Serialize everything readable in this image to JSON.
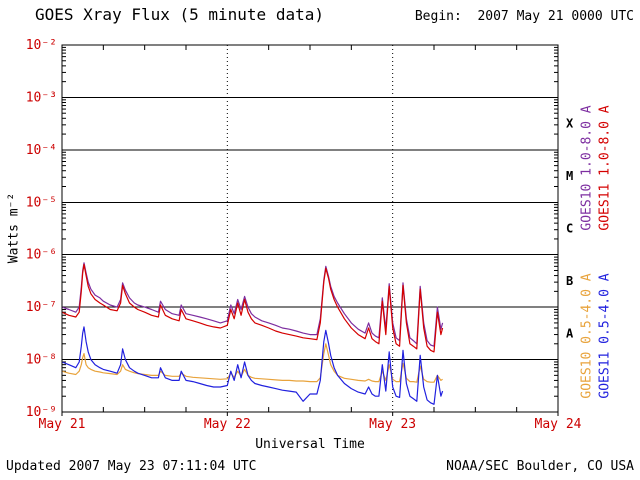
{
  "header": {
    "title": "GOES Xray Flux (5 minute data)",
    "begin_label": "Begin:  2007 May 21 0000 UTC"
  },
  "footer": {
    "updated": "Updated 2007 May 23 07:11:04 UTC",
    "source": "NOAA/SEC Boulder, CO USA"
  },
  "axes": {
    "x_label": "Universal Time",
    "y_label": "Watts m⁻²",
    "tick_label_color": "#cc0000",
    "x_ticks": [
      {
        "label": "May 21",
        "hour": 0
      },
      {
        "label": "May 22",
        "hour": 24
      },
      {
        "label": "May 23",
        "hour": 48
      },
      {
        "label": "May 24",
        "hour": 72
      }
    ],
    "y_ticks": [
      {
        "label": "10⁻²",
        "exponent": -2
      },
      {
        "label": "10⁻³",
        "exponent": -3
      },
      {
        "label": "10⁻⁴",
        "exponent": -4
      },
      {
        "label": "10⁻⁵",
        "exponent": -5
      },
      {
        "label": "10⁻⁶",
        "exponent": -6
      },
      {
        "label": "10⁻⁷",
        "exponent": -7
      },
      {
        "label": "10⁻⁸",
        "exponent": -8
      },
      {
        "label": "10⁻⁹",
        "exponent": -9
      }
    ],
    "flare_classes": [
      {
        "label": "X",
        "center_exponent": -3.5
      },
      {
        "label": "M",
        "center_exponent": -4.5
      },
      {
        "label": "C",
        "center_exponent": -5.5
      },
      {
        "label": "B",
        "center_exponent": -6.5
      },
      {
        "label": "A",
        "center_exponent": -7.5
      }
    ]
  },
  "legend": {
    "entries": [
      {
        "text": "GOES10 1.0-8.0 A",
        "color": "#7d2ea0"
      },
      {
        "text": "GOES11 1.0-8.0 A",
        "color": "#d40000"
      },
      {
        "text": "GOES10 0.5-4.0 A",
        "color": "#e8a33c"
      },
      {
        "text": "GOES11 0.5-4.0 A",
        "color": "#2121de"
      }
    ]
  },
  "colors": {
    "background": "#ffffff",
    "grid": "#000000",
    "axis_tick_labels": "#cc0000"
  },
  "chart_data": {
    "type": "line",
    "title": "GOES Xray Flux (5 minute data)",
    "xlabel": "Universal Time",
    "ylabel": "Watts m⁻²",
    "begin": "2007 May 21 0000 UTC",
    "x_unit": "hours since 2007-05-21 00:00 UTC",
    "x_range_hours": [
      0,
      72
    ],
    "y_scale": "log10",
    "y_range": [
      1e-09,
      0.01
    ],
    "grid": {
      "horizontal": "solid black line each decade",
      "vertical": "dotted black line at each day boundary"
    },
    "legend_position": "right side, rotated 90",
    "x_hours": [
      0,
      1,
      2,
      2.5,
      2.8,
      3.0,
      3.2,
      3.5,
      3.8,
      4.2,
      4.8,
      5.5,
      6,
      7,
      8,
      8.5,
      8.8,
      9.2,
      9.8,
      10.5,
      11,
      12,
      13,
      14,
      14.3,
      15,
      16,
      17,
      17.3,
      18,
      19,
      20,
      21,
      22,
      23,
      24,
      24.5,
      25,
      25.5,
      26,
      26.5,
      27,
      27.5,
      28,
      29,
      30,
      31,
      32,
      33,
      34,
      35,
      36,
      37,
      37.5,
      38,
      38.3,
      38.7,
      39,
      39.5,
      40,
      41,
      42,
      43,
      44,
      44.5,
      45,
      45.5,
      46,
      46.5,
      47,
      47.5,
      48,
      48.5,
      49,
      49.5,
      50,
      50.5,
      51,
      51.5,
      52,
      52.5,
      53,
      53.5,
      54,
      54.5,
      55,
      55.25
    ],
    "series": [
      {
        "name": "GOES10 1.0-8.0 A",
        "color": "#7d2ea0",
        "values": [
          1e-07,
          9e-08,
          8e-08,
          1e-07,
          2.4e-07,
          5e-07,
          7e-07,
          4.5e-07,
          3e-07,
          2.2e-07,
          1.7e-07,
          1.5e-07,
          1.3e-07,
          1.1e-07,
          1e-07,
          1.4e-07,
          2.9e-07,
          2.1e-07,
          1.5e-07,
          1.2e-07,
          1.1e-07,
          1e-07,
          9e-08,
          8e-08,
          1.3e-07,
          9e-08,
          7.5e-08,
          7e-08,
          1.1e-07,
          7.5e-08,
          7e-08,
          6.5e-08,
          6e-08,
          5.5e-08,
          5e-08,
          5.5e-08,
          1.1e-07,
          7.5e-08,
          1.4e-07,
          9e-08,
          1.6e-07,
          1e-07,
          7.5e-08,
          6.5e-08,
          5.5e-08,
          5e-08,
          4.5e-08,
          4e-08,
          3.8e-08,
          3.5e-08,
          3.2e-08,
          3e-08,
          3e-08,
          6e-08,
          3.3e-07,
          6e-07,
          3.8e-07,
          2.5e-07,
          1.6e-07,
          1.2e-07,
          7.5e-08,
          5e-08,
          3.8e-08,
          3.2e-08,
          5e-08,
          3.2e-08,
          2.8e-08,
          2.6e-08,
          1.5e-07,
          3.8e-08,
          2.8e-07,
          5e-08,
          2.6e-08,
          2.3e-08,
          2.9e-07,
          6e-08,
          2.6e-08,
          2.3e-08,
          2e-08,
          2.5e-07,
          5e-08,
          2.3e-08,
          1.9e-08,
          1.8e-08,
          1e-07,
          3.8e-08,
          5e-08
        ]
      },
      {
        "name": "GOES11 1.0-8.0 A",
        "color": "#d40000",
        "values": [
          8e-08,
          7e-08,
          6.5e-08,
          8e-08,
          2e-07,
          4.5e-07,
          6.5e-07,
          4e-07,
          2.5e-07,
          1.8e-07,
          1.4e-07,
          1.2e-07,
          1.1e-07,
          9e-08,
          8.5e-08,
          1.2e-07,
          2.6e-07,
          1.8e-07,
          1.2e-07,
          1e-07,
          9e-08,
          8e-08,
          7e-08,
          6.5e-08,
          1.1e-07,
          7e-08,
          6e-08,
          5.5e-08,
          9e-08,
          6e-08,
          5.5e-08,
          5e-08,
          4.5e-08,
          4.2e-08,
          4e-08,
          4.5e-08,
          9e-08,
          6e-08,
          1.2e-07,
          7e-08,
          1.4e-07,
          8e-08,
          6e-08,
          5e-08,
          4.5e-08,
          4e-08,
          3.5e-08,
          3.2e-08,
          3e-08,
          2.8e-08,
          2.6e-08,
          2.5e-08,
          2.4e-08,
          5e-08,
          3e-07,
          5.5e-07,
          3.5e-07,
          2.2e-07,
          1.4e-07,
          1e-07,
          6e-08,
          4e-08,
          3e-08,
          2.5e-08,
          4e-08,
          2.5e-08,
          2.2e-08,
          2e-08,
          1.3e-07,
          3e-08,
          2.5e-07,
          4e-08,
          2e-08,
          1.8e-08,
          2.6e-07,
          5e-08,
          2e-08,
          1.8e-08,
          1.6e-08,
          2.2e-07,
          4e-08,
          1.8e-08,
          1.5e-08,
          1.4e-08,
          8e-08,
          3e-08,
          4e-08
        ]
      },
      {
        "name": "GOES10 0.5-4.0 A",
        "color": "#e8a33c",
        "values": [
          6e-09,
          5.5e-09,
          5.2e-09,
          6e-09,
          8e-09,
          1.1e-08,
          1.3e-08,
          8e-09,
          7e-09,
          6.5e-09,
          6e-09,
          5.8e-09,
          5.6e-09,
          5.4e-09,
          5.2e-09,
          6e-09,
          8e-09,
          6.5e-09,
          6e-09,
          5.6e-09,
          5.4e-09,
          5.2e-09,
          5e-09,
          5e-09,
          6e-09,
          5e-09,
          4.8e-09,
          4.8e-09,
          5.5e-09,
          4.8e-09,
          4.6e-09,
          4.5e-09,
          4.4e-09,
          4.3e-09,
          4.2e-09,
          4.3e-09,
          5.5e-09,
          4.6e-09,
          6e-09,
          4.8e-09,
          6.5e-09,
          5e-09,
          4.6e-09,
          4.4e-09,
          4.3e-09,
          4.2e-09,
          4.1e-09,
          4e-09,
          4e-09,
          3.9e-09,
          3.9e-09,
          3.8e-09,
          3.8e-09,
          4.5e-09,
          1.3e-08,
          2e-08,
          1.2e-08,
          8e-09,
          6e-09,
          5e-09,
          4.4e-09,
          4.2e-09,
          4e-09,
          3.9e-09,
          4.2e-09,
          3.9e-09,
          3.8e-09,
          3.8e-09,
          6e-09,
          4e-09,
          8e-09,
          4.2e-09,
          3.8e-09,
          3.8e-09,
          8.5e-09,
          4.4e-09,
          3.8e-09,
          3.8e-09,
          3.7e-09,
          7.5e-09,
          4.2e-09,
          3.8e-09,
          3.7e-09,
          3.7e-09,
          5e-09,
          4e-09,
          4.2e-09
        ]
      },
      {
        "name": "GOES11 0.5-4.0 A",
        "color": "#2121de",
        "values": [
          9e-09,
          8e-09,
          7e-09,
          9e-09,
          1.8e-08,
          3.2e-08,
          4.2e-08,
          2.2e-08,
          1.4e-08,
          1e-08,
          8e-09,
          7e-09,
          6.5e-09,
          6e-09,
          5.5e-09,
          8e-09,
          1.6e-08,
          1e-08,
          7e-09,
          6e-09,
          5.5e-09,
          5e-09,
          4.5e-09,
          4.5e-09,
          7e-09,
          4.5e-09,
          4e-09,
          4e-09,
          6e-09,
          4e-09,
          3.8e-09,
          3.5e-09,
          3.2e-09,
          3e-09,
          3e-09,
          3.2e-09,
          6e-09,
          4e-09,
          8e-09,
          4.5e-09,
          9e-09,
          5e-09,
          4e-09,
          3.5e-09,
          3.2e-09,
          3e-09,
          2.8e-09,
          2.6e-09,
          2.5e-09,
          2.4e-09,
          1.6e-09,
          2.2e-09,
          2.2e-09,
          4e-09,
          2.2e-08,
          3.6e-08,
          2e-08,
          1.2e-08,
          7e-09,
          5e-09,
          3.5e-09,
          2.8e-09,
          2.4e-09,
          2.2e-09,
          3e-09,
          2.2e-09,
          2e-09,
          2e-09,
          8e-09,
          2.5e-09,
          1.4e-08,
          3e-09,
          2e-09,
          1.9e-09,
          1.5e-08,
          3.5e-09,
          2e-09,
          1.8e-09,
          1.6e-09,
          1.2e-08,
          3e-09,
          1.7e-09,
          1.5e-09,
          1.4e-09,
          5e-09,
          2e-09,
          2.5e-09
        ]
      }
    ]
  }
}
